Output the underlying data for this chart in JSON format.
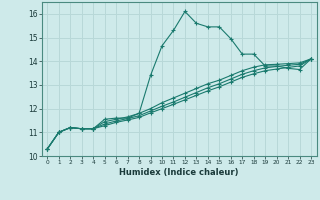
{
  "xlabel": "Humidex (Indice chaleur)",
  "ylabel": "",
  "xlim": [
    -0.5,
    23.5
  ],
  "ylim": [
    10,
    16.5
  ],
  "background_color": "#ceeaea",
  "grid_color": "#b8d8d8",
  "line_color": "#1a7a6e",
  "lines": [
    {
      "x": [
        0,
        1,
        2,
        3,
        4,
        5,
        6,
        7,
        8,
        9,
        10,
        11,
        12,
        13,
        14,
        15,
        16,
        17,
        18,
        19,
        20,
        21,
        22,
        23
      ],
      "y": [
        10.3,
        11.0,
        11.2,
        11.15,
        11.15,
        11.55,
        11.6,
        11.6,
        11.8,
        13.4,
        14.65,
        15.3,
        16.1,
        15.6,
        15.45,
        15.45,
        14.95,
        14.3,
        14.3,
        13.8,
        13.8,
        13.7,
        13.65,
        14.1
      ]
    },
    {
      "x": [
        0,
        1,
        2,
        3,
        4,
        5,
        6,
        7,
        8,
        9,
        10,
        11,
        12,
        13,
        14,
        15,
        16,
        17,
        18,
        19,
        20,
        21,
        22,
        23
      ],
      "y": [
        10.3,
        11.0,
        11.2,
        11.15,
        11.15,
        11.45,
        11.55,
        11.65,
        11.8,
        12.0,
        12.25,
        12.45,
        12.65,
        12.85,
        13.05,
        13.2,
        13.4,
        13.6,
        13.75,
        13.85,
        13.87,
        13.9,
        13.93,
        14.1
      ]
    },
    {
      "x": [
        0,
        1,
        2,
        3,
        4,
        5,
        6,
        7,
        8,
        9,
        10,
        11,
        12,
        13,
        14,
        15,
        16,
        17,
        18,
        19,
        20,
        21,
        22,
        23
      ],
      "y": [
        10.3,
        11.0,
        11.2,
        11.15,
        11.15,
        11.35,
        11.48,
        11.58,
        11.7,
        11.9,
        12.1,
        12.28,
        12.48,
        12.68,
        12.88,
        13.05,
        13.25,
        13.45,
        13.6,
        13.72,
        13.78,
        13.83,
        13.87,
        14.1
      ]
    },
    {
      "x": [
        0,
        1,
        2,
        3,
        4,
        5,
        6,
        7,
        8,
        9,
        10,
        11,
        12,
        13,
        14,
        15,
        16,
        17,
        18,
        19,
        20,
        21,
        22,
        23
      ],
      "y": [
        10.3,
        11.0,
        11.2,
        11.15,
        11.15,
        11.28,
        11.42,
        11.52,
        11.63,
        11.82,
        12.0,
        12.18,
        12.37,
        12.56,
        12.75,
        12.92,
        13.12,
        13.32,
        13.47,
        13.6,
        13.67,
        13.74,
        13.8,
        14.1
      ]
    }
  ]
}
